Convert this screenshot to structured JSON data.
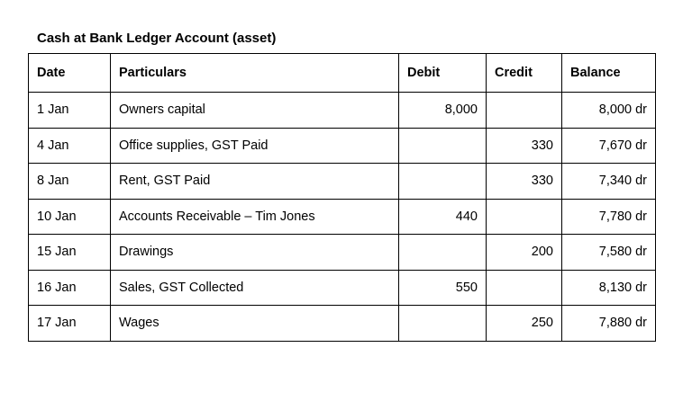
{
  "title": "Cash at Bank Ledger Account (asset)",
  "columns": [
    "Date",
    "Particulars",
    "Debit",
    "Credit",
    "Balance"
  ],
  "rows": [
    {
      "date": "1 Jan",
      "particulars": "Owners capital",
      "debit": "8,000",
      "credit": "",
      "balance": "8,000 dr"
    },
    {
      "date": "4 Jan",
      "particulars": "Office supplies, GST Paid",
      "debit": "",
      "credit": "330",
      "balance": "7,670 dr"
    },
    {
      "date": "8 Jan",
      "particulars": "Rent, GST Paid",
      "debit": "",
      "credit": "330",
      "balance": "7,340 dr"
    },
    {
      "date": "10 Jan",
      "particulars": "Accounts Receivable – Tim Jones",
      "debit": "440",
      "credit": "",
      "balance": "7,780 dr"
    },
    {
      "date": "15 Jan",
      "particulars": "Drawings",
      "debit": "",
      "credit": "200",
      "balance": "7,580 dr"
    },
    {
      "date": "16 Jan",
      "particulars": "Sales, GST Collected",
      "debit": "550",
      "credit": "",
      "balance": "8,130 dr"
    },
    {
      "date": "17 Jan",
      "particulars": "Wages",
      "debit": "",
      "credit": "250",
      "balance": "7,880 dr"
    }
  ]
}
